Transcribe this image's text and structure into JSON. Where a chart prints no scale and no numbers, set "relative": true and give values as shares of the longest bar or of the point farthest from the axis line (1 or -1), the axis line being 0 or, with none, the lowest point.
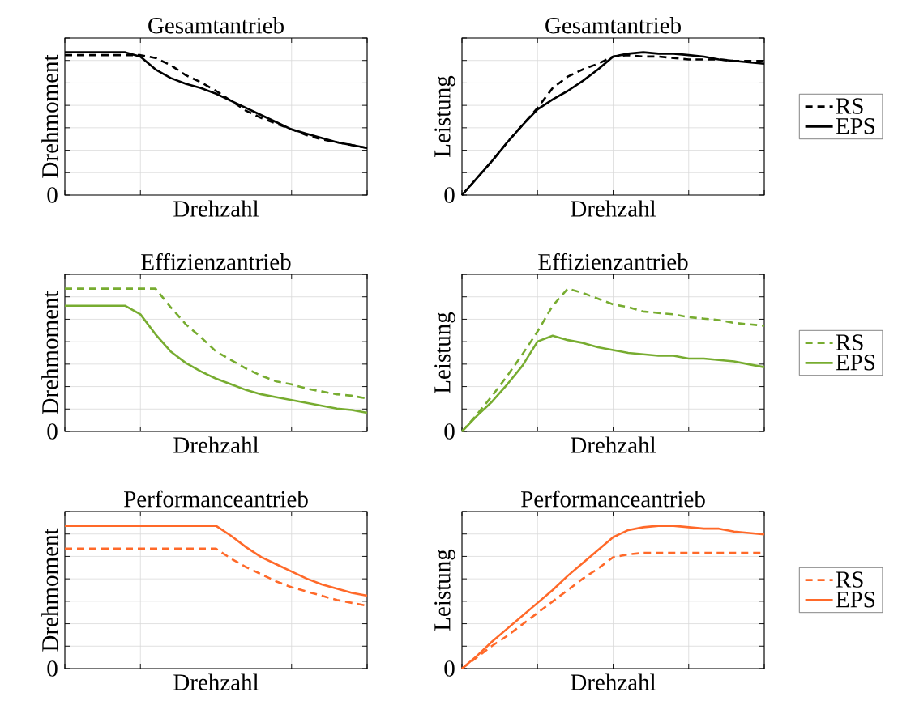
{
  "chart_data": [
    {
      "type": "line",
      "relative": true,
      "title": "Gesamtantrieb",
      "xlabel": "Drehzahl",
      "ylabel": "Drehmoment",
      "categories": [
        null,
        null,
        null,
        null,
        null,
        null,
        null,
        null,
        null,
        null,
        null,
        null,
        null,
        null,
        null,
        null,
        null,
        null,
        null,
        null,
        null
      ],
      "grid": true,
      "annotations": [
        "0"
      ],
      "series": [
        {
          "color": "#000000",
          "line_style": "dashed",
          "values": [
            0.98,
            0.98,
            0.98,
            0.98,
            0.98,
            0.98,
            0.96,
            0.91,
            0.84,
            0.79,
            0.73,
            0.66,
            0.59,
            0.54,
            0.5,
            0.46,
            0.42,
            0.39,
            0.37,
            0.35,
            0.33
          ]
        },
        {
          "color": "#000000",
          "line_style": "solid",
          "values": [
            1.0,
            1.0,
            1.0,
            1.0,
            1.0,
            0.97,
            0.88,
            0.82,
            0.78,
            0.75,
            0.71,
            0.66,
            0.61,
            0.56,
            0.51,
            0.46,
            0.43,
            0.4,
            0.37,
            0.35,
            0.33
          ]
        }
      ]
    },
    {
      "type": "line",
      "relative": true,
      "title": "Gesamtantrieb",
      "xlabel": "Drehzahl",
      "ylabel": "Leistung",
      "categories": [
        null,
        null,
        null,
        null,
        null,
        null,
        null,
        null,
        null,
        null,
        null,
        null,
        null,
        null,
        null,
        null,
        null,
        null,
        null,
        null,
        null
      ],
      "grid": true,
      "legend": "right",
      "annotations": [
        "0"
      ],
      "series": [
        {
          "name": "RS",
          "color": "#000000",
          "line_style": "dashed",
          "values": [
            0,
            0.12,
            0.24,
            0.37,
            0.49,
            0.61,
            0.75,
            0.83,
            0.88,
            0.92,
            0.97,
            0.98,
            0.97,
            0.97,
            0.96,
            0.95,
            0.95,
            0.95,
            0.94,
            0.94,
            0.94
          ]
        },
        {
          "name": "EPS",
          "color": "#000000",
          "line_style": "solid",
          "values": [
            0,
            0.12,
            0.24,
            0.37,
            0.49,
            0.6,
            0.67,
            0.73,
            0.8,
            0.88,
            0.97,
            0.99,
            1.0,
            0.99,
            0.99,
            0.98,
            0.97,
            0.95,
            0.94,
            0.93,
            0.92
          ]
        }
      ]
    },
    {
      "type": "line",
      "relative": true,
      "title": "Effizienzantrieb",
      "xlabel": "Drehzahl",
      "ylabel": "Drehmoment",
      "categories": [
        null,
        null,
        null,
        null,
        null,
        null,
        null,
        null,
        null,
        null,
        null,
        null,
        null,
        null,
        null,
        null,
        null,
        null,
        null,
        null,
        null
      ],
      "grid": true,
      "annotations": [
        "0"
      ],
      "series": [
        {
          "color": "#77ac30",
          "line_style": "dashed",
          "values": [
            1.0,
            1.0,
            1.0,
            1.0,
            1.0,
            1.0,
            1.0,
            0.87,
            0.75,
            0.66,
            0.56,
            0.5,
            0.44,
            0.39,
            0.35,
            0.33,
            0.3,
            0.28,
            0.26,
            0.25,
            0.23
          ]
        },
        {
          "color": "#77ac30",
          "line_style": "solid",
          "values": [
            0.88,
            0.88,
            0.88,
            0.88,
            0.88,
            0.82,
            0.68,
            0.56,
            0.48,
            0.42,
            0.37,
            0.33,
            0.29,
            0.26,
            0.24,
            0.22,
            0.2,
            0.18,
            0.16,
            0.15,
            0.13
          ]
        }
      ]
    },
    {
      "type": "line",
      "relative": true,
      "title": "Effizienzantrieb",
      "xlabel": "Drehzahl",
      "ylabel": "Leistung",
      "categories": [
        null,
        null,
        null,
        null,
        null,
        null,
        null,
        null,
        null,
        null,
        null,
        null,
        null,
        null,
        null,
        null,
        null,
        null,
        null,
        null,
        null
      ],
      "grid": true,
      "legend": "right",
      "annotations": [
        "0"
      ],
      "series": [
        {
          "name": "RS",
          "color": "#77ac30",
          "line_style": "dashed",
          "values": [
            0,
            0.12,
            0.25,
            0.39,
            0.54,
            0.7,
            0.88,
            1.0,
            0.97,
            0.93,
            0.89,
            0.87,
            0.84,
            0.83,
            0.82,
            0.8,
            0.79,
            0.78,
            0.76,
            0.75,
            0.74
          ]
        },
        {
          "name": "EPS",
          "color": "#77ac30",
          "line_style": "solid",
          "values": [
            0,
            0.11,
            0.21,
            0.33,
            0.46,
            0.63,
            0.67,
            0.64,
            0.62,
            0.59,
            0.57,
            0.55,
            0.54,
            0.53,
            0.53,
            0.51,
            0.51,
            0.5,
            0.49,
            0.47,
            0.45
          ]
        }
      ]
    },
    {
      "type": "line",
      "relative": true,
      "title": "Performanceantrieb",
      "xlabel": "Drehzahl",
      "ylabel": "Drehmoment",
      "categories": [
        null,
        null,
        null,
        null,
        null,
        null,
        null,
        null,
        null,
        null,
        null,
        null,
        null,
        null,
        null,
        null,
        null,
        null,
        null,
        null,
        null
      ],
      "grid": true,
      "annotations": [
        "0"
      ],
      "series": [
        {
          "color": "#ff6929",
          "line_style": "dashed",
          "values": [
            0.84,
            0.84,
            0.84,
            0.84,
            0.84,
            0.84,
            0.84,
            0.84,
            0.84,
            0.84,
            0.84,
            0.77,
            0.71,
            0.66,
            0.61,
            0.57,
            0.54,
            0.51,
            0.48,
            0.46,
            0.44
          ]
        },
        {
          "color": "#ff6929",
          "line_style": "solid",
          "values": [
            1.0,
            1.0,
            1.0,
            1.0,
            1.0,
            1.0,
            1.0,
            1.0,
            1.0,
            1.0,
            1.0,
            0.93,
            0.85,
            0.78,
            0.73,
            0.68,
            0.63,
            0.59,
            0.56,
            0.53,
            0.51
          ]
        }
      ]
    },
    {
      "type": "line",
      "relative": true,
      "title": "Performanceantrieb",
      "xlabel": "Drehzahl",
      "ylabel": "Leistung",
      "categories": [
        null,
        null,
        null,
        null,
        null,
        null,
        null,
        null,
        null,
        null,
        null,
        null,
        null,
        null,
        null,
        null,
        null,
        null,
        null,
        null,
        null
      ],
      "grid": true,
      "legend": "right",
      "annotations": [
        "0"
      ],
      "series": [
        {
          "name": "RS",
          "color": "#ff6929",
          "line_style": "dashed",
          "values": [
            0,
            0.08,
            0.16,
            0.23,
            0.31,
            0.39,
            0.47,
            0.55,
            0.63,
            0.7,
            0.78,
            0.8,
            0.81,
            0.81,
            0.81,
            0.81,
            0.81,
            0.81,
            0.81,
            0.81,
            0.81
          ]
        },
        {
          "name": "EPS",
          "color": "#ff6929",
          "line_style": "solid",
          "values": [
            0,
            0.09,
            0.19,
            0.28,
            0.37,
            0.46,
            0.55,
            0.65,
            0.74,
            0.83,
            0.92,
            0.97,
            0.99,
            1.0,
            1.0,
            0.99,
            0.98,
            0.98,
            0.96,
            0.95,
            0.94
          ]
        }
      ]
    }
  ]
}
